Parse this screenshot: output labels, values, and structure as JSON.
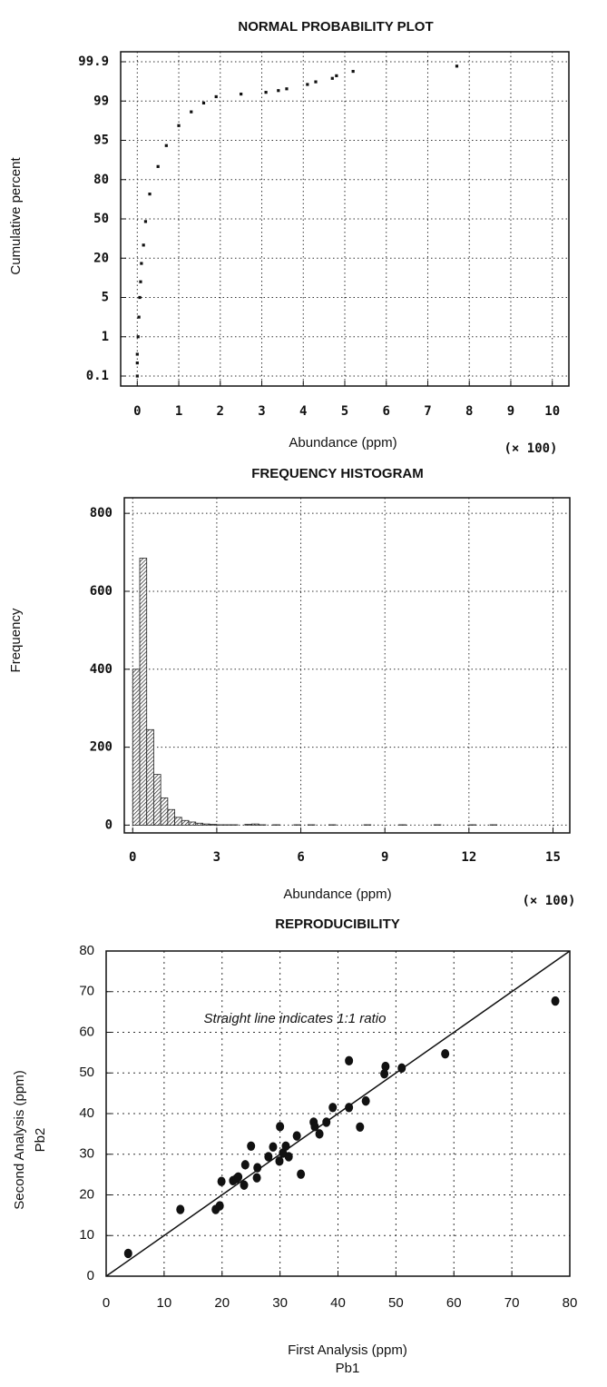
{
  "chart_data": [
    {
      "type": "scatter",
      "title": "NORMAL PROBABILITY PLOT",
      "xlabel": "Abundance (ppm)",
      "x_multiplier": "(× 100)",
      "ylabel": "Cumulative percent",
      "x": [
        0,
        0,
        0,
        0.02,
        0.04,
        0.06,
        0.08,
        0.1,
        0.15,
        0.2,
        0.3,
        0.5,
        0.7,
        1.0,
        1.3,
        1.6,
        1.9,
        2.5,
        3.1,
        3.4,
        3.6,
        4.1,
        4.3,
        4.7,
        4.8,
        5.2,
        7.7
      ],
      "y": [
        0.1,
        0.4,
        0.6,
        1,
        3,
        5,
        11,
        18,
        30,
        48,
        69,
        85,
        93,
        96.5,
        97.9,
        98.8,
        99.1,
        99.16,
        99.2,
        99.24,
        99.28,
        99.38,
        99.44,
        99.52,
        99.58,
        99.68,
        99.8
      ],
      "xlim": [
        -0.4,
        10.4
      ],
      "xticks": [
        0,
        1,
        2,
        3,
        4,
        5,
        6,
        7,
        8,
        9,
        10
      ],
      "ylim": [
        0.1,
        99.9
      ],
      "yticks": [
        0.1,
        1,
        5,
        20,
        50,
        80,
        95,
        99,
        99.9
      ],
      "yscale": "probability",
      "grid": true,
      "color": "#111111"
    },
    {
      "type": "histogram",
      "title": "FREQUENCY HISTOGRAM",
      "xlabel": "Abundance (ppm)",
      "x_multiplier": "(× 100)",
      "ylabel": "Frequency",
      "bins": [
        0,
        0.25,
        0.5,
        0.75,
        1,
        1.25,
        1.5,
        1.75,
        2,
        2.25,
        2.5,
        2.75,
        3,
        3.25,
        3.5,
        3.75,
        4,
        4.25,
        4.5,
        4.75,
        5,
        5.25,
        5.5,
        5.75,
        6,
        6.25,
        6.5,
        6.75,
        7,
        7.25,
        7.5,
        7.75,
        8,
        8.25,
        8.5,
        8.75,
        9,
        9.25,
        9.5,
        9.75,
        10,
        10.25,
        10.5,
        10.75,
        11,
        11.25,
        11.5,
        11.75,
        12,
        12.25,
        12.5,
        12.75,
        13
      ],
      "counts": [
        400,
        685,
        245,
        130,
        70,
        40,
        20,
        12,
        8,
        5,
        3,
        2,
        1,
        1,
        1,
        0,
        2,
        3,
        1,
        0,
        1,
        0,
        0,
        1,
        0,
        1,
        0,
        0,
        1,
        0,
        0,
        0,
        0,
        1,
        0,
        0,
        0,
        0,
        1,
        0,
        0,
        0,
        0,
        1,
        0,
        0,
        0,
        0,
        1,
        0,
        0,
        1
      ],
      "xlim": [
        -0.3,
        15.6
      ],
      "xticks": [
        0,
        3,
        6,
        9,
        12,
        15
      ],
      "ylim": [
        -20,
        840
      ],
      "yticks": [
        0,
        200,
        400,
        600,
        800
      ],
      "grid": true,
      "color": "#222222",
      "fill": "hatched"
    },
    {
      "type": "scatter",
      "title": "REPRODUCIBILITY",
      "xlabel": "First Analysis (ppm)",
      "xlabel2": "Pb1",
      "ylabel": "Second Analysis (ppm)",
      "ylabel2": "Pb2",
      "annotation": "Straight line indicates 1:1 ratio",
      "x": [
        3.8,
        12.8,
        18.9,
        19.6,
        19.9,
        21.9,
        22.5,
        22.8,
        23.8,
        24,
        25,
        26,
        26.1,
        28,
        28.8,
        29.9,
        30,
        30.5,
        31,
        31.5,
        32.9,
        33.6,
        35.8,
        36,
        36.8,
        38,
        39.1,
        41.9,
        41.9,
        43.8,
        44.8,
        48,
        48.2,
        51,
        58.5,
        77.5
      ],
      "y": [
        5.6,
        16.4,
        16.4,
        17.3,
        23.3,
        23.5,
        24,
        24.4,
        22.4,
        27.4,
        32,
        24.2,
        26.7,
        29.4,
        31.8,
        28.3,
        36.8,
        30.3,
        32,
        29.4,
        34.5,
        25.1,
        37.9,
        36.8,
        35,
        37.9,
        41.5,
        41.5,
        53,
        36.7,
        43.1,
        49.8,
        51.6,
        51.2,
        54.7,
        67.7
      ],
      "line": {
        "x": [
          0,
          80
        ],
        "y": [
          0,
          80
        ]
      },
      "xlim": [
        0,
        80
      ],
      "xticks": [
        0,
        10,
        20,
        30,
        40,
        50,
        60,
        70,
        80
      ],
      "ylim": [
        0,
        80
      ],
      "yticks": [
        0,
        10,
        20,
        30,
        40,
        50,
        60,
        70,
        80
      ],
      "grid": true,
      "color": "#111111"
    }
  ]
}
